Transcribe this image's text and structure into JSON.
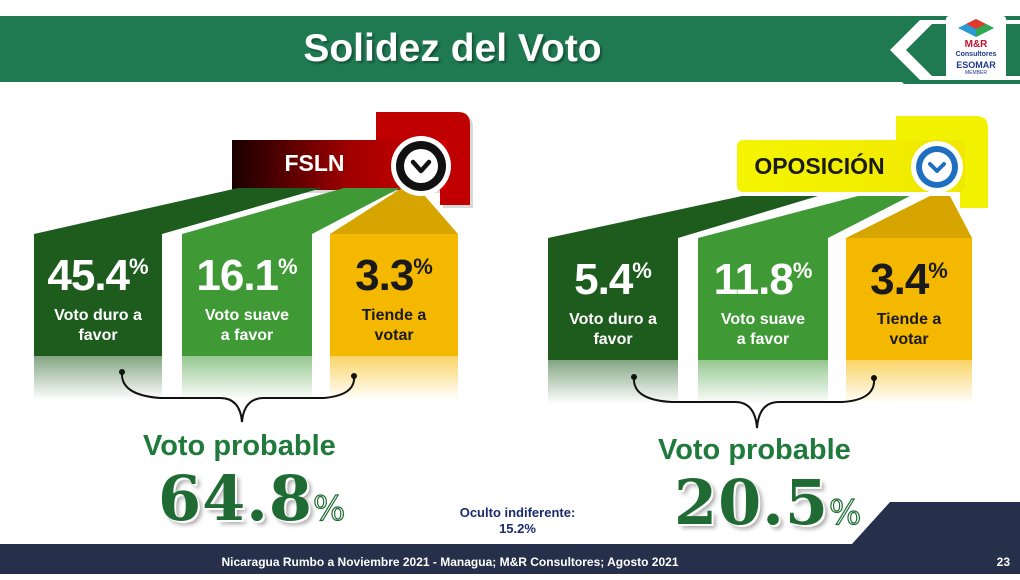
{
  "header": {
    "title": "Solidez del Voto",
    "logo": {
      "brand": "M&R",
      "sub": "Consultores",
      "esomar": "ESOMAR",
      "member": "MEMBER"
    }
  },
  "colors": {
    "header_green": "#1f7a52",
    "dark_green": "#1e5c1e",
    "mid_green": "#3f9a35",
    "gold": "#f5b800",
    "fsln_red": "#c00000",
    "oposicion_yellow": "#f2f200",
    "badge_blue": "#1f6fc0",
    "footer_navy": "#26304a",
    "total_green": "#1f6b33"
  },
  "groups": [
    {
      "id": "fsln",
      "label": "FSLN",
      "icon": "chevron-down-icon",
      "cards": [
        {
          "value": "45.4",
          "unit": "%",
          "desc1": "Voto duro a",
          "desc2": "favor"
        },
        {
          "value": "16.1",
          "unit": "%",
          "desc1": "Voto suave",
          "desc2": "a favor"
        },
        {
          "value": "3.3",
          "unit": "%",
          "desc1": "Tiende a",
          "desc2": "votar"
        }
      ],
      "probable_label": "Voto probable",
      "total_value": "64.8",
      "total_unit": "%"
    },
    {
      "id": "oposicion",
      "label": "OPOSICIÓN",
      "icon": "chevron-down-icon",
      "cards": [
        {
          "value": "5.4",
          "unit": "%",
          "desc1": "Voto duro a",
          "desc2": "favor"
        },
        {
          "value": "11.8",
          "unit": "%",
          "desc1": "Voto suave",
          "desc2": "a favor"
        },
        {
          "value": "3.4",
          "unit": "%",
          "desc1": "Tiende a",
          "desc2": "votar"
        }
      ],
      "probable_label": "Voto probable",
      "total_value": "20.5",
      "total_unit": "%"
    }
  ],
  "oculto": {
    "label": "Oculto indiferente:",
    "value": "15.2%"
  },
  "footer": {
    "text": "Nicaragua Rumbo a Noviembre 2021 - Managua; M&R Consultores; Agosto 2021",
    "page": "23"
  }
}
